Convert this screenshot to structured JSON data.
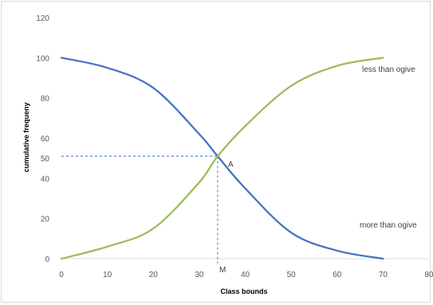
{
  "chart_data": {
    "type": "line",
    "title": "",
    "xlabel": "Class bounds",
    "ylabel": "cumulative frequeny",
    "xlim": [
      0,
      80
    ],
    "ylim": [
      0,
      120
    ],
    "x_ticks": [
      0,
      10,
      20,
      30,
      40,
      50,
      60,
      70,
      80
    ],
    "y_ticks": [
      0,
      20,
      40,
      60,
      80,
      100,
      120
    ],
    "extra_y_tick": 50,
    "grid": "x-axis baseline only",
    "colors": {
      "more_than": "#4472c4",
      "less_than": "#9bbb59",
      "dashed": "#4472c4"
    },
    "series": [
      {
        "key": "more_than",
        "x": [
          0,
          10,
          20,
          30,
          34,
          40,
          50,
          60,
          70
        ],
        "y": [
          100,
          95,
          85,
          62,
          51,
          35,
          13,
          4,
          0
        ]
      },
      {
        "key": "less_than",
        "x": [
          0,
          10,
          20,
          30,
          34,
          40,
          50,
          60,
          70
        ],
        "y": [
          0,
          6,
          15,
          38,
          51,
          66,
          86,
          96,
          100
        ]
      }
    ],
    "annotations": {
      "less_than_label": "less than ogive",
      "more_than_label": "more than ogive",
      "intersection_label": "A",
      "median_label": "M",
      "intersection_point": {
        "x": 34,
        "y": 51
      }
    }
  }
}
